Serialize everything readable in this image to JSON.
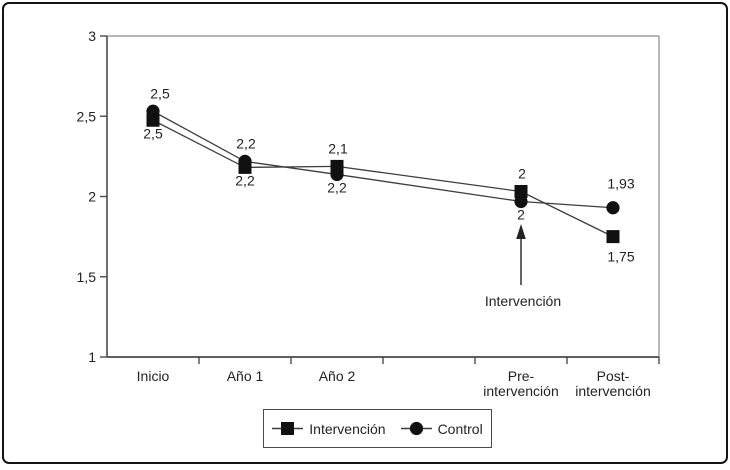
{
  "figure": {
    "background": "#ffffff",
    "border_color": "#141414",
    "axis_color": "#4a4a4a",
    "plot_border_color": "#8a8a8a"
  },
  "chart_data": {
    "type": "line",
    "title": "",
    "xlabel": "",
    "ylabel": "",
    "categories": [
      "Inicio",
      "Año 1",
      "Año 2",
      "Pre-intervención",
      "Post-intervención"
    ],
    "x_labels": [
      [
        "Inicio"
      ],
      [
        "Año 1"
      ],
      [
        "Año 2"
      ],
      [
        "Pre-",
        "intervención"
      ],
      [
        "Post-",
        "intervención"
      ]
    ],
    "slot_index": [
      0,
      1,
      2,
      4,
      5
    ],
    "x_slots": 6,
    "y_axis": {
      "min": 1,
      "max": 3,
      "ticks": [
        {
          "value": 3,
          "label": "3"
        },
        {
          "value": 2.5,
          "label": "2,5"
        },
        {
          "value": 2,
          "label": "2"
        },
        {
          "value": 1.5,
          "label": "1,5"
        },
        {
          "value": 1,
          "label": "1"
        }
      ]
    },
    "grid": false,
    "line_color": "#3d3d3d",
    "marker_color": "#111111",
    "series": [
      {
        "name": "Intervención",
        "marker": "square",
        "values": [
          2.5,
          2.2,
          2.2,
          2,
          1.75
        ],
        "point_labels": [
          "2,5",
          "2,2",
          "2,2",
          "2",
          "1,75"
        ]
      },
      {
        "name": "Control",
        "marker": "circle",
        "values": [
          2.5,
          2.2,
          2.1,
          2,
          1.93
        ],
        "point_labels": [
          "2,5",
          "2,2",
          "2,1",
          "2",
          "1,93"
        ]
      }
    ],
    "point_label_layout": {
      "above_series": "Control",
      "below_series": "Intervención"
    },
    "annotation": {
      "text": "Intervención",
      "target_category": "Pre-intervención",
      "arrow": "up"
    },
    "legend": {
      "position": "bottom",
      "entries": [
        {
          "label": "Intervención",
          "marker": "square"
        },
        {
          "label": "Control",
          "marker": "circle"
        }
      ]
    }
  }
}
